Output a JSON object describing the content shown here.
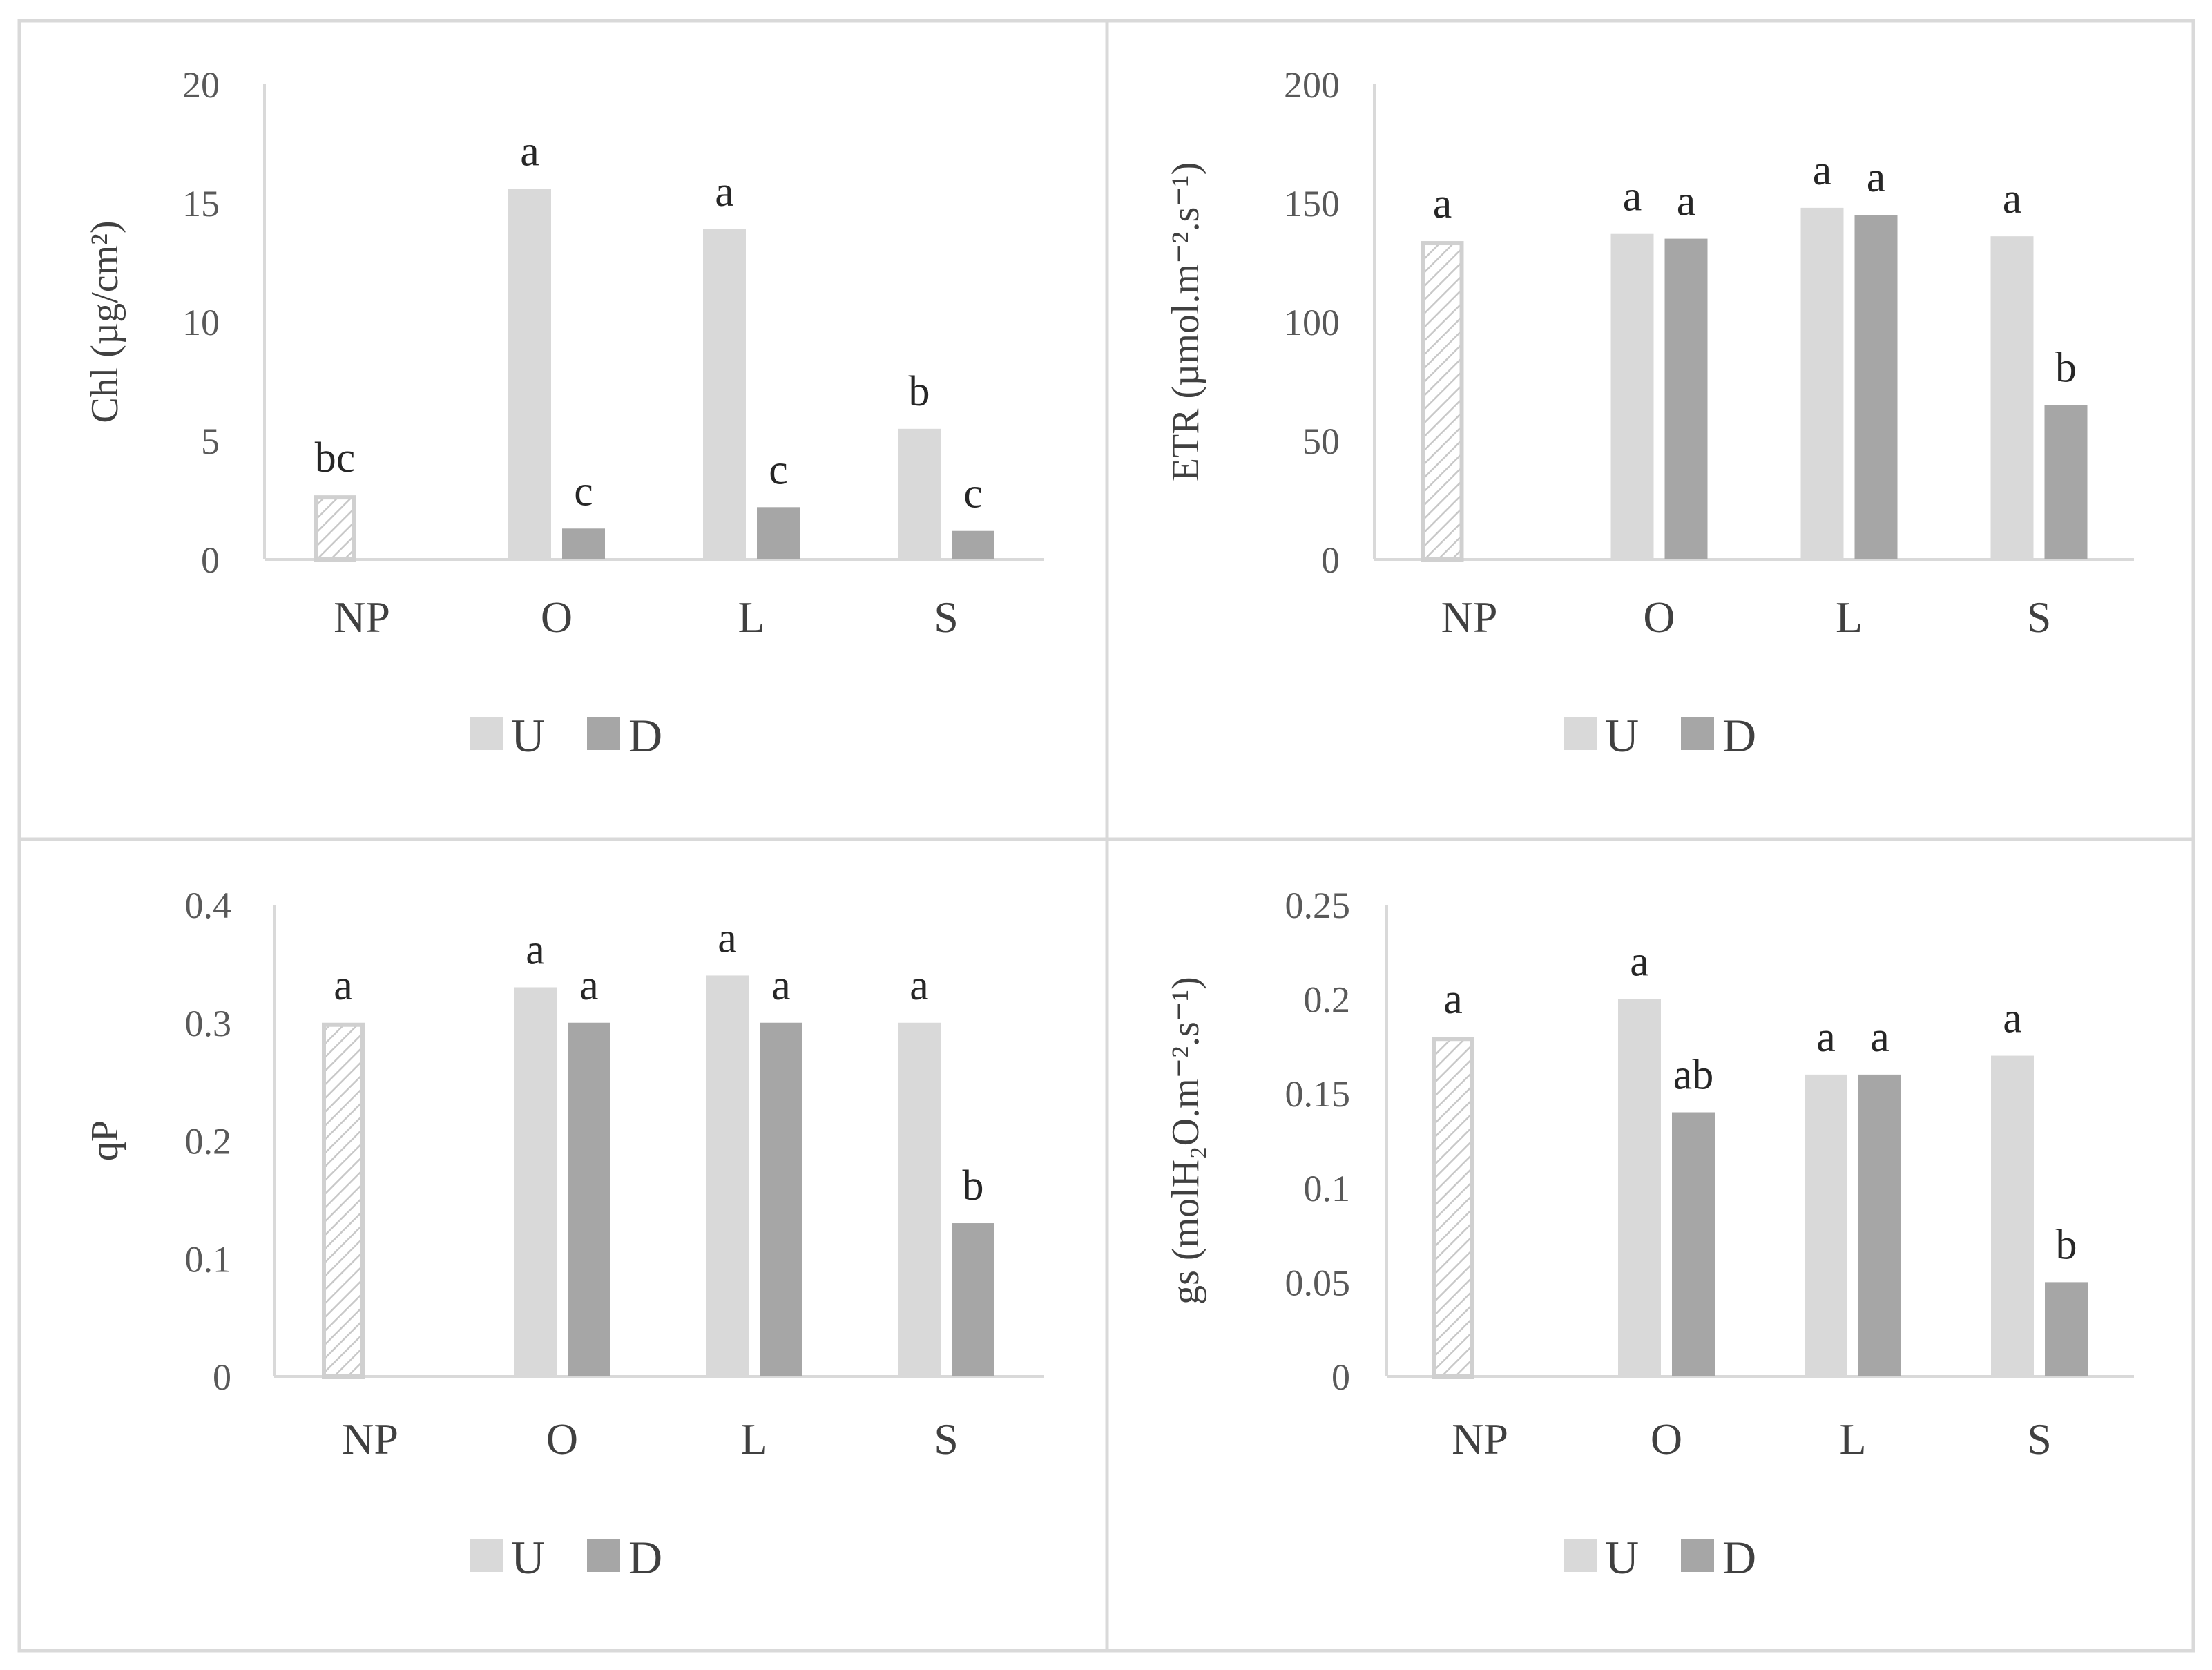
{
  "legend": {
    "items": [
      {
        "label": "U",
        "color": "#d9d9d9"
      },
      {
        "label": "D",
        "color": "#a6a6a6"
      }
    ],
    "np_pattern_color": "#c8c8c8"
  },
  "chart_data": [
    {
      "type": "bar",
      "panel": "top-left",
      "ylabel": "Chl (µg/cm²)",
      "ylim": [
        0,
        20
      ],
      "yticks": [
        "0",
        "5",
        "10",
        "15",
        "20"
      ],
      "yticks_values": [
        0,
        5,
        10,
        15,
        20
      ],
      "categories": [
        "NP",
        "O",
        "L",
        "S"
      ],
      "series": [
        {
          "name": "U",
          "values": [
            2.7,
            15.6,
            13.9,
            5.5
          ],
          "letters": [
            "bc",
            "a",
            "a",
            "b"
          ]
        },
        {
          "name": "D",
          "values": [
            null,
            1.3,
            2.2,
            1.2
          ],
          "letters": [
            "",
            "c",
            "c",
            "c"
          ]
        }
      ]
    },
    {
      "type": "bar",
      "panel": "top-right",
      "ylabel": "ETR (µmol.m⁻².s⁻¹)",
      "ylim": [
        0,
        200
      ],
      "yticks": [
        "0",
        "50",
        "100",
        "150",
        "200"
      ],
      "yticks_values": [
        0,
        50,
        100,
        150,
        200
      ],
      "categories": [
        "NP",
        "O",
        "L",
        "S"
      ],
      "series": [
        {
          "name": "U",
          "values": [
            134,
            137,
            148,
            136
          ],
          "letters": [
            "a",
            "a",
            "a",
            "a"
          ]
        },
        {
          "name": "D",
          "values": [
            null,
            135,
            145,
            65
          ],
          "letters": [
            "",
            "a",
            "a",
            "b"
          ]
        }
      ]
    },
    {
      "type": "bar",
      "panel": "bottom-left",
      "ylabel": "qP",
      "ylim": [
        0,
        0.4
      ],
      "yticks": [
        "0",
        "0.1",
        "0.2",
        "0.3",
        "0.4"
      ],
      "yticks_values": [
        0,
        0.1,
        0.2,
        0.3,
        0.4
      ],
      "categories": [
        "NP",
        "O",
        "L",
        "S"
      ],
      "series": [
        {
          "name": "U",
          "values": [
            0.3,
            0.33,
            0.34,
            0.3
          ],
          "letters": [
            "a",
            "a",
            "a",
            "a"
          ]
        },
        {
          "name": "D",
          "values": [
            null,
            0.3,
            0.3,
            0.13
          ],
          "letters": [
            "",
            "a",
            "a",
            "b"
          ]
        }
      ]
    },
    {
      "type": "bar",
      "panel": "bottom-right",
      "ylabel": "gs (molH₂O.m⁻².s⁻¹)",
      "ylim": [
        0,
        0.25
      ],
      "yticks": [
        "0",
        "0.05",
        "0.1",
        "0.15",
        "0.2",
        "0.25"
      ],
      "yticks_values": [
        0,
        0.05,
        0.1,
        0.15,
        0.2,
        0.25
      ],
      "categories": [
        "NP",
        "O",
        "L",
        "S"
      ],
      "series": [
        {
          "name": "U",
          "values": [
            0.18,
            0.2,
            0.16,
            0.17
          ],
          "letters": [
            "a",
            "a",
            "a",
            "a"
          ]
        },
        {
          "name": "D",
          "values": [
            null,
            0.14,
            0.16,
            0.05
          ],
          "letters": [
            "",
            "ab",
            "a",
            "b"
          ]
        }
      ]
    }
  ]
}
